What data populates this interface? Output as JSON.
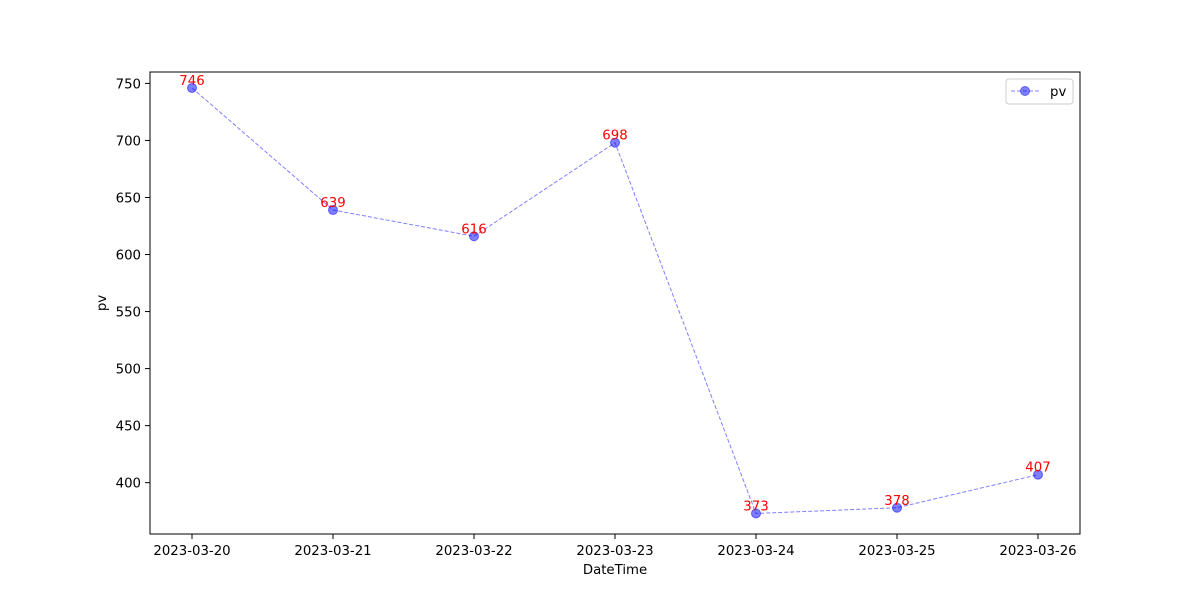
{
  "chart_data": {
    "type": "line",
    "title": "",
    "xlabel": "DateTime",
    "ylabel": "pv",
    "categories": [
      "2023-03-20",
      "2023-03-21",
      "2023-03-22",
      "2023-03-23",
      "2023-03-24",
      "2023-03-25",
      "2023-03-26"
    ],
    "series": [
      {
        "name": "pv",
        "values": [
          746,
          639,
          616,
          698,
          373,
          378,
          407
        ],
        "color": "#0000ff",
        "line_style": "dashed",
        "marker": "circle",
        "alpha": 0.5
      }
    ],
    "data_label_color": "#ff0000",
    "yticks": [
      400,
      450,
      500,
      550,
      600,
      650,
      700,
      750
    ],
    "ylim": [
      355,
      760
    ],
    "grid": false,
    "legend_position": "upper right"
  }
}
